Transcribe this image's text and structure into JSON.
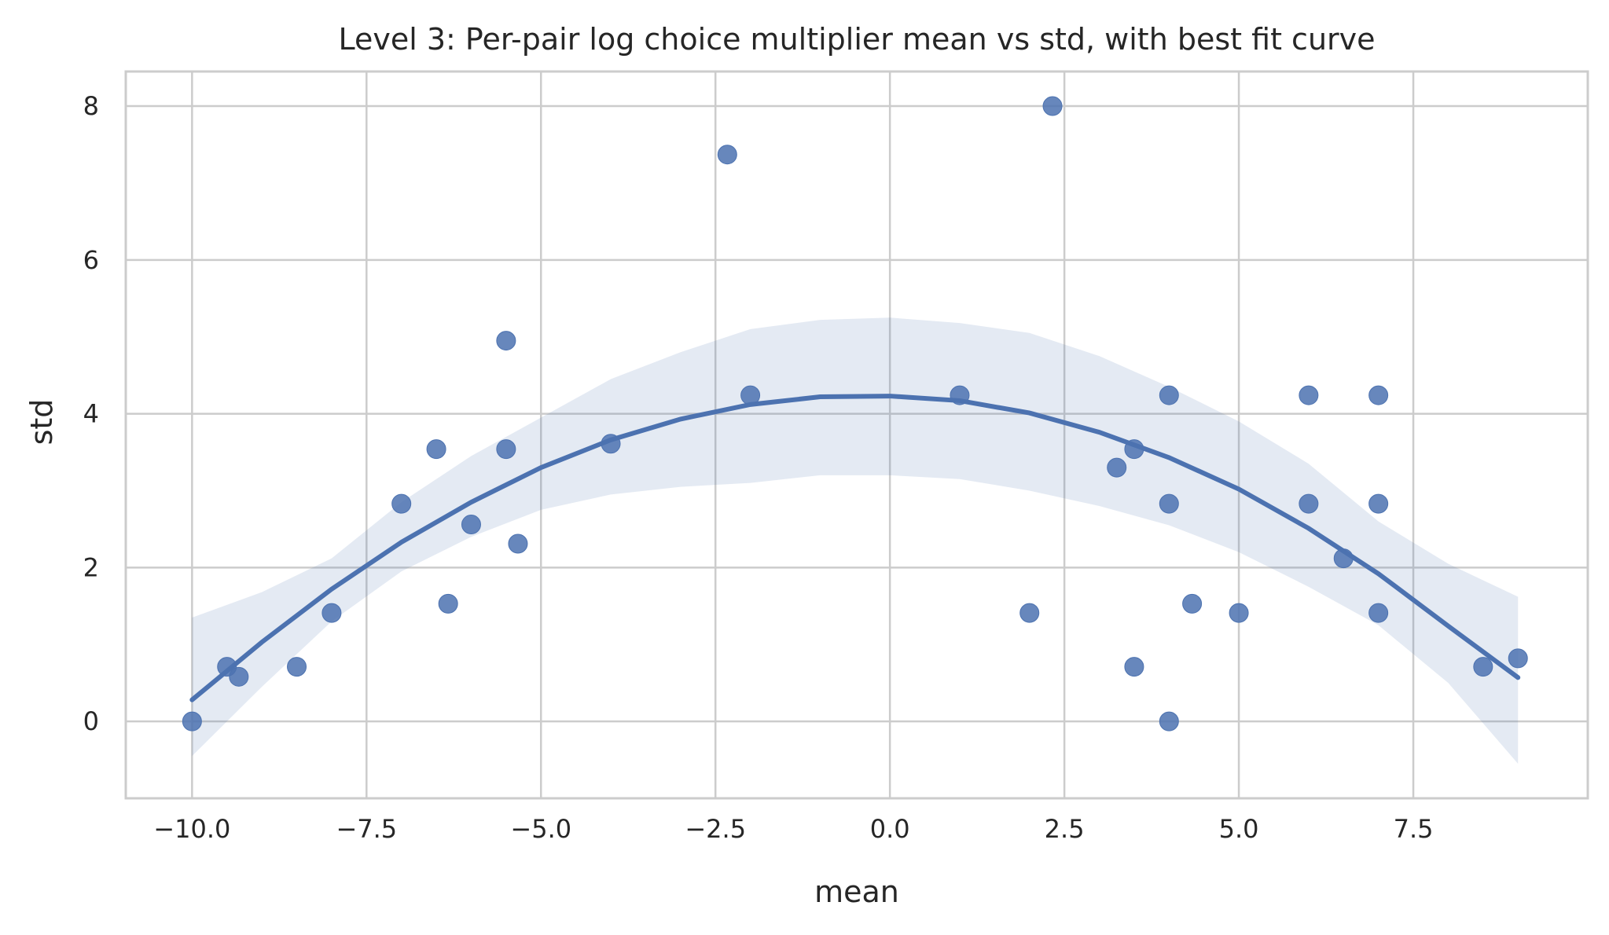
{
  "chart_data": {
    "type": "scatter",
    "title": "Level 3: Per-pair log choice multiplier mean vs std, with best fit curve",
    "xlabel": "mean",
    "ylabel": "std",
    "xlim": [
      -10.95,
      10.0
    ],
    "ylim": [
      -1.0,
      8.45
    ],
    "xticks": [
      -10.0,
      -7.5,
      -5.0,
      -2.5,
      0.0,
      2.5,
      5.0,
      7.5
    ],
    "xtick_labels": [
      "−10.0",
      "−7.5",
      "−5.0",
      "−2.5",
      "0.0",
      "2.5",
      "5.0",
      "7.5"
    ],
    "yticks": [
      0,
      2,
      4,
      6,
      8
    ],
    "ytick_labels": [
      "0",
      "2",
      "4",
      "6",
      "8"
    ],
    "grid": true,
    "colors": {
      "series": "#4c72b0",
      "grid": "#cccccc",
      "text": "#262626"
    },
    "points": [
      [
        -10.0,
        0.0
      ],
      [
        -9.5,
        0.71
      ],
      [
        -9.33,
        0.58
      ],
      [
        -8.5,
        0.71
      ],
      [
        -8.0,
        1.41
      ],
      [
        -7.0,
        2.83
      ],
      [
        -6.5,
        3.54
      ],
      [
        -6.33,
        1.53
      ],
      [
        -6.0,
        2.56
      ],
      [
        -5.5,
        4.95
      ],
      [
        -5.5,
        3.54
      ],
      [
        -5.33,
        2.31
      ],
      [
        -4.0,
        3.61
      ],
      [
        -2.33,
        7.37
      ],
      [
        -2.0,
        4.24
      ],
      [
        1.0,
        4.24
      ],
      [
        2.0,
        1.41
      ],
      [
        2.33,
        8.0
      ],
      [
        3.25,
        3.3
      ],
      [
        3.5,
        3.54
      ],
      [
        3.5,
        0.71
      ],
      [
        4.0,
        4.24
      ],
      [
        4.0,
        2.83
      ],
      [
        4.0,
        0.0
      ],
      [
        4.33,
        1.53
      ],
      [
        5.0,
        1.41
      ],
      [
        6.0,
        4.24
      ],
      [
        6.0,
        2.83
      ],
      [
        6.5,
        2.12
      ],
      [
        7.0,
        4.24
      ],
      [
        7.0,
        2.83
      ],
      [
        7.0,
        1.41
      ],
      [
        8.5,
        0.71
      ],
      [
        9.0,
        0.82
      ]
    ],
    "fit_curve": {
      "type": "quadratic",
      "x": [
        -10.0,
        -9.0,
        -8.0,
        -7.0,
        -6.0,
        -5.0,
        -4.0,
        -3.0,
        -2.0,
        -1.0,
        0.0,
        1.0,
        2.0,
        3.0,
        4.0,
        5.0,
        6.0,
        7.0,
        8.0,
        9.0
      ],
      "y": [
        0.28,
        1.03,
        1.72,
        2.33,
        2.85,
        3.3,
        3.66,
        3.93,
        4.12,
        4.22,
        4.23,
        4.17,
        4.01,
        3.76,
        3.43,
        3.02,
        2.51,
        1.92,
        1.24,
        0.57
      ]
    },
    "confidence_band": {
      "x": [
        -10.0,
        -9.0,
        -8.0,
        -7.0,
        -6.0,
        -5.0,
        -4.0,
        -3.0,
        -2.0,
        -1.0,
        0.0,
        1.0,
        2.0,
        3.0,
        4.0,
        5.0,
        6.0,
        7.0,
        8.0,
        9.0
      ],
      "lower": [
        -0.45,
        0.45,
        1.3,
        1.95,
        2.4,
        2.75,
        2.95,
        3.05,
        3.1,
        3.2,
        3.2,
        3.15,
        3.0,
        2.8,
        2.55,
        2.2,
        1.75,
        1.25,
        0.5,
        -0.55
      ],
      "upper": [
        1.35,
        1.68,
        2.12,
        2.85,
        3.45,
        3.95,
        4.45,
        4.8,
        5.1,
        5.22,
        5.25,
        5.18,
        5.05,
        4.75,
        4.35,
        3.9,
        3.35,
        2.6,
        2.05,
        1.62
      ]
    }
  }
}
